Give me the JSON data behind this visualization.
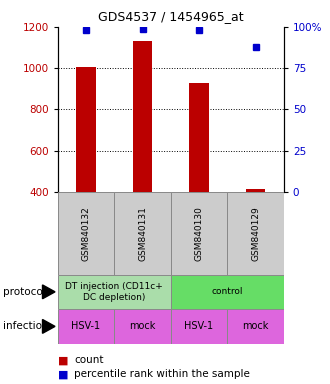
{
  "title": "GDS4537 / 1454965_at",
  "samples": [
    "GSM840132",
    "GSM840131",
    "GSM840130",
    "GSM840129"
  ],
  "bar_values": [
    1008,
    1130,
    930,
    413
  ],
  "percentile_values": [
    98,
    99,
    98,
    88
  ],
  "ylim_left": [
    400,
    1200
  ],
  "ylim_right": [
    0,
    100
  ],
  "yticks_left": [
    400,
    600,
    800,
    1000,
    1200
  ],
  "yticks_right": [
    0,
    25,
    50,
    75,
    100
  ],
  "right_tick_labels": [
    "0",
    "25",
    "50",
    "75",
    "100%"
  ],
  "bar_color": "#bb0000",
  "dot_color": "#0000cc",
  "protocol_data": [
    {
      "start": 0,
      "end": 1,
      "label": "DT injection (CD11c+\nDC depletion)",
      "color": "#aaddaa"
    },
    {
      "start": 2,
      "end": 3,
      "label": "control",
      "color": "#66dd66"
    }
  ],
  "infection_labels": [
    "HSV-1",
    "mock",
    "HSV-1",
    "mock"
  ],
  "infection_color": "#dd66dd",
  "sample_bg": "#cccccc",
  "legend_count_color": "#bb0000",
  "legend_pct_color": "#0000cc",
  "left_axis_color": "#bb0000",
  "right_axis_color": "#0000cc",
  "bar_width": 0.35
}
